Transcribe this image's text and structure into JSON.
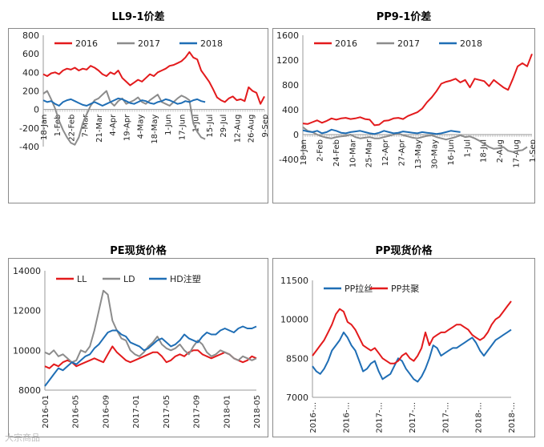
{
  "page": {
    "watermark": "大宗商品"
  },
  "chart_data": [
    {
      "id": "ll",
      "type": "line",
      "title": "LL9-1价差",
      "x_ticks": [
        "18-Jan",
        "1-Feb",
        "22-Feb",
        "7-Mar",
        "21-Mar",
        "4-Apr",
        "19-Apr",
        "4-May",
        "18-May",
        "1-Jun",
        "17-Jun",
        "1-Jul",
        "15-Jul",
        "29-Jul",
        "12-Aug",
        "26-Aug",
        "9-Sep"
      ],
      "ylim": [
        -400,
        800
      ],
      "y_ticks": [
        -400,
        -200,
        0,
        200,
        400,
        600,
        800
      ],
      "legend_position": "top",
      "grid": false,
      "series": [
        {
          "name": "2016",
          "color": "#e31a1c",
          "values": [
            380,
            360,
            390,
            400,
            380,
            420,
            440,
            430,
            450,
            420,
            440,
            430,
            470,
            450,
            420,
            380,
            360,
            400,
            380,
            420,
            340,
            300,
            260,
            290,
            320,
            300,
            340,
            380,
            360,
            400,
            420,
            440,
            470,
            480,
            500,
            520,
            560,
            620,
            560,
            540,
            420,
            360,
            300,
            220,
            130,
            100,
            80,
            120,
            140,
            100,
            110,
            90,
            240,
            200,
            180,
            60,
            140
          ]
        },
        {
          "name": "2017",
          "color": "#8c8c8c",
          "values": [
            170,
            200,
            110,
            10,
            -120,
            -220,
            -300,
            -360,
            -380,
            -300,
            -150,
            -50,
            40,
            100,
            120,
            160,
            200,
            80,
            40,
            90,
            120,
            60,
            80,
            100,
            130,
            80,
            60,
            100,
            130,
            160,
            80,
            60,
            40,
            80,
            120,
            150,
            130,
            100,
            -150,
            -240,
            -300,
            -320
          ]
        },
        {
          "name": "2018",
          "color": "#1f6eb5",
          "values": [
            100,
            80,
            90,
            60,
            40,
            80,
            100,
            110,
            90,
            70,
            50,
            40,
            60,
            80,
            60,
            40,
            60,
            80,
            100,
            120,
            110,
            90,
            70,
            60,
            80,
            100,
            90,
            70,
            60,
            80,
            90,
            110,
            100,
            80,
            60,
            70,
            90,
            80,
            100,
            110,
            90,
            80
          ]
        }
      ]
    },
    {
      "id": "pp91",
      "type": "line",
      "title": "PP9-1价差",
      "x_ticks": [
        "18-Jan",
        "2-Feb",
        "24-Feb",
        "10-Mar",
        "25-Mar",
        "12-Apr",
        "27-Apr",
        "13-May",
        "30-May",
        "16-Jun",
        "1-Jul",
        "18-Jul",
        "2-Aug",
        "17-Aug",
        "1-Sep"
      ],
      "ylim": [
        -400,
        1600
      ],
      "y_ticks": [
        -400,
        0,
        400,
        800,
        1200,
        1600
      ],
      "legend_position": "top",
      "grid": false,
      "series": [
        {
          "name": "2016",
          "color": "#e31a1c",
          "values": [
            180,
            170,
            200,
            230,
            190,
            220,
            260,
            240,
            260,
            270,
            250,
            260,
            280,
            250,
            240,
            150,
            160,
            220,
            230,
            260,
            270,
            250,
            300,
            330,
            360,
            420,
            520,
            600,
            700,
            820,
            850,
            870,
            900,
            840,
            880,
            760,
            900,
            880,
            860,
            780,
            880,
            820,
            760,
            720,
            900,
            1100,
            1150,
            1100,
            1300
          ]
        },
        {
          "name": "2017",
          "color": "#8c8c8c",
          "values": [
            120,
            60,
            40,
            0,
            -30,
            -50,
            -60,
            -40,
            -30,
            -20,
            0,
            -40,
            -60,
            -50,
            -40,
            -60,
            -60,
            -40,
            -20,
            0,
            20,
            -10,
            -30,
            -50,
            -60,
            -40,
            -20,
            -10,
            -40,
            -60,
            -80,
            -60,
            -40,
            -10,
            -40,
            -30,
            -60,
            -100,
            -150,
            -200,
            -230,
            -220,
            -200,
            -260,
            -280,
            -260,
            -250,
            -200
          ]
        },
        {
          "name": "2018",
          "color": "#1f6eb5",
          "values": [
            70,
            50,
            40,
            60,
            20,
            40,
            80,
            60,
            30,
            20,
            40,
            50,
            60,
            40,
            20,
            10,
            30,
            60,
            40,
            20,
            30,
            50,
            40,
            30,
            20,
            40,
            30,
            20,
            10,
            20,
            40,
            60,
            50,
            40
          ]
        }
      ]
    },
    {
      "id": "pe",
      "type": "line",
      "title": "PE现货价格",
      "x_ticks": [
        "2016-01",
        "2016-05",
        "2016-09",
        "2017-01",
        "2017-05",
        "2017-09",
        "2018-01",
        "2018-05"
      ],
      "ylim": [
        8000,
        14000
      ],
      "y_ticks": [
        8000,
        10000,
        12000,
        14000
      ],
      "legend_position": "top",
      "grid": false,
      "series": [
        {
          "name": "LL",
          "color": "#e31a1c",
          "values": [
            9200,
            9100,
            9300,
            9200,
            9400,
            9500,
            9400,
            9200,
            9300,
            9400,
            9500,
            9600,
            9500,
            9400,
            9800,
            10200,
            9900,
            9700,
            9500,
            9400,
            9500,
            9600,
            9700,
            9800,
            9900,
            9900,
            9700,
            9400,
            9500,
            9700,
            9800,
            9700,
            9900,
            10000,
            10000,
            9800,
            9700,
            9600,
            9700,
            9800,
            9900,
            9800,
            9600,
            9500,
            9400,
            9500,
            9700,
            9600
          ]
        },
        {
          "name": "LD",
          "color": "#8c8c8c",
          "values": [
            9900,
            9800,
            10000,
            9700,
            9800,
            9600,
            9400,
            9500,
            10000,
            9900,
            10200,
            11000,
            12000,
            13000,
            12800,
            11500,
            11000,
            10600,
            10500,
            10000,
            9800,
            9700,
            9900,
            10200,
            10400,
            10700,
            10300,
            10100,
            10000,
            10100,
            10300,
            10000,
            9800,
            10200,
            10500,
            10300,
            9900,
            9700,
            9800,
            10000,
            9900,
            9800,
            9600,
            9500,
            9700,
            9600,
            9500,
            9600
          ]
        },
        {
          "name": "HD注塑",
          "color": "#1f6eb5",
          "values": [
            8200,
            8500,
            8800,
            9100,
            9000,
            9200,
            9400,
            9300,
            9500,
            9700,
            9800,
            10100,
            10300,
            10600,
            10900,
            11000,
            11000,
            10800,
            10700,
            10400,
            10300,
            10200,
            10000,
            10100,
            10300,
            10500,
            10600,
            10400,
            10200,
            10300,
            10500,
            10800,
            10600,
            10500,
            10400,
            10700,
            10900,
            10800,
            10800,
            11000,
            11100,
            11000,
            10900,
            11100,
            11200,
            11100,
            11100,
            11200
          ]
        }
      ]
    },
    {
      "id": "pp",
      "type": "line",
      "title": "PP现货价格",
      "x_ticks": [
        "2016-...",
        "2016-...",
        "2017-...",
        "2017-...",
        "2017-...",
        "2018-...",
        "2018-..."
      ],
      "ylim": [
        7000,
        11500
      ],
      "y_ticks": [
        7000,
        8500,
        10000,
        11500
      ],
      "legend_position": "top",
      "grid": false,
      "series": [
        {
          "name": "PP拉丝",
          "color": "#1f6eb5",
          "values": [
            8200,
            8000,
            7900,
            8100,
            8400,
            8800,
            9000,
            9200,
            9500,
            9300,
            9000,
            8800,
            8400,
            8000,
            8100,
            8300,
            8400,
            8000,
            7700,
            7800,
            7900,
            8200,
            8500,
            8400,
            8100,
            7900,
            7700,
            7600,
            7800,
            8100,
            8500,
            9000,
            8900,
            8600,
            8700,
            8800,
            8900,
            8900,
            9000,
            9100,
            9200,
            9300,
            9100,
            8800,
            8600,
            8800,
            9000,
            9200,
            9300,
            9400,
            9500,
            9600
          ]
        },
        {
          "name": "PP共聚",
          "color": "#e31a1c",
          "values": [
            8600,
            8800,
            9000,
            9200,
            9500,
            9800,
            10200,
            10400,
            10300,
            9900,
            9800,
            9600,
            9300,
            9000,
            8900,
            8800,
            8900,
            8700,
            8500,
            8400,
            8300,
            8300,
            8400,
            8600,
            8700,
            8500,
            8400,
            8600,
            8900,
            9500,
            9000,
            9300,
            9400,
            9500,
            9500,
            9600,
            9700,
            9800,
            9800,
            9700,
            9600,
            9400,
            9300,
            9200,
            9300,
            9500,
            9800,
            10000,
            10100,
            10300,
            10500,
            10700
          ]
        }
      ]
    }
  ]
}
